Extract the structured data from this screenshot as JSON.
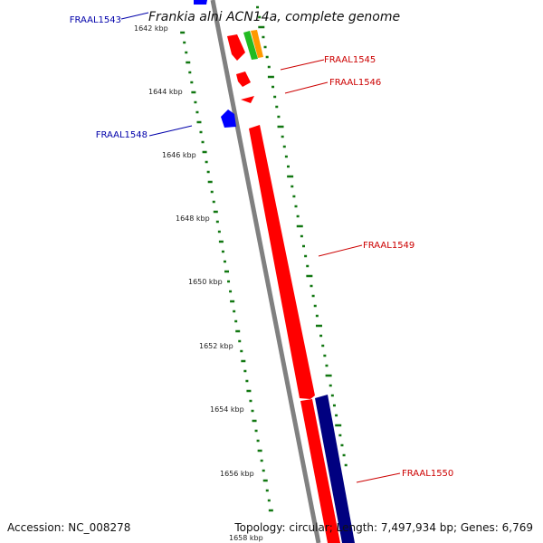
{
  "title": "Frankia alni ACN14a, complete genome",
  "footer": {
    "accession": "Accession: NC_008278",
    "summary": "Topology: circular; Length: 7,497,934 bp; Genes: 6,769"
  },
  "ticks": [
    "1642 kbp",
    "1644 kbp",
    "1646 kbp",
    "1648 kbp",
    "1650 kbp",
    "1652 kbp",
    "1654 kbp",
    "1656 kbp",
    "1658 kbp"
  ],
  "gene_labels": [
    {
      "name": "FRAAL1543",
      "strand": "minus"
    },
    {
      "name": "FRAAL1545",
      "strand": "plus"
    },
    {
      "name": "FRAAL1546",
      "strand": "plus"
    },
    {
      "name": "FRAAL1548",
      "strand": "minus"
    },
    {
      "name": "FRAAL1549",
      "strand": "plus"
    },
    {
      "name": "FRAAL1550",
      "strand": "plus"
    }
  ],
  "colors": {
    "backbone": "#808080",
    "plus_gene": "#ff0000",
    "minus_gene": "#0000ff",
    "minus_outer_gene": "#000080",
    "rna_gene": "#22bb22",
    "misc_gene": "#ff9900",
    "gc_marks": "#117711",
    "plus_label": "#cc0000",
    "minus_label": "#0000aa"
  }
}
